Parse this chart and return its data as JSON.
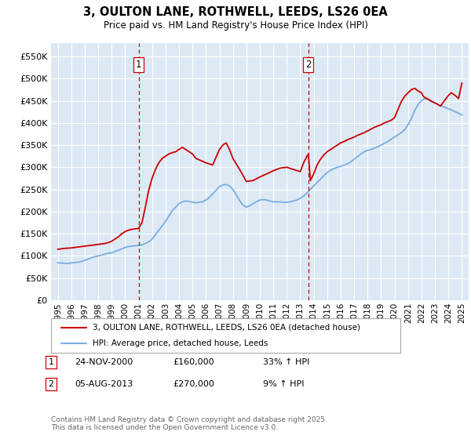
{
  "title": "3, OULTON LANE, ROTHWELL, LEEDS, LS26 0EA",
  "subtitle": "Price paid vs. HM Land Registry's House Price Index (HPI)",
  "ylim": [
    0,
    580000
  ],
  "xlim_year_start": 1994.5,
  "xlim_year_end": 2025.5,
  "yticks": [
    0,
    50000,
    100000,
    150000,
    200000,
    250000,
    300000,
    350000,
    400000,
    450000,
    500000,
    550000
  ],
  "ytick_labels": [
    "£0",
    "£50K",
    "£100K",
    "£150K",
    "£200K",
    "£250K",
    "£300K",
    "£350K",
    "£400K",
    "£450K",
    "£500K",
    "£550K"
  ],
  "xticks": [
    1995,
    1996,
    1997,
    1998,
    1999,
    2000,
    2001,
    2002,
    2003,
    2004,
    2005,
    2006,
    2007,
    2008,
    2009,
    2010,
    2011,
    2012,
    2013,
    2014,
    2015,
    2016,
    2017,
    2018,
    2019,
    2020,
    2021,
    2022,
    2023,
    2024,
    2025
  ],
  "background_color": "#ffffff",
  "plot_bg_color": "#dce9f5",
  "grid_color": "#ffffff",
  "red_line_color": "#cc0000",
  "blue_line_color": "#7aace0",
  "vline_color": "#cc0000",
  "purchase1_year": 2001.0,
  "purchase1_price": 160000,
  "purchase1_label": "1",
  "purchase1_date": "24-NOV-2000",
  "purchase1_hpi": "33% ↑ HPI",
  "purchase2_year": 2013.6,
  "purchase2_price": 270000,
  "purchase2_label": "2",
  "purchase2_date": "05-AUG-2013",
  "purchase2_hpi": "9% ↑ HPI",
  "legend_line1": "3, OULTON LANE, ROTHWELL, LEEDS, LS26 0EA (detached house)",
  "legend_line2": "HPI: Average price, detached house, Leeds",
  "footer": "Contains HM Land Registry data © Crown copyright and database right 2025.\nThis data is licensed under the Open Government Licence v3.0.",
  "hpi_years": [
    1995.0,
    1995.25,
    1995.5,
    1995.75,
    1996.0,
    1996.25,
    1996.5,
    1996.75,
    1997.0,
    1997.25,
    1997.5,
    1997.75,
    1998.0,
    1998.25,
    1998.5,
    1998.75,
    1999.0,
    1999.25,
    1999.5,
    1999.75,
    2000.0,
    2000.25,
    2000.5,
    2000.75,
    2001.0,
    2001.25,
    2001.5,
    2001.75,
    2002.0,
    2002.25,
    2002.5,
    2002.75,
    2003.0,
    2003.25,
    2003.5,
    2003.75,
    2004.0,
    2004.25,
    2004.5,
    2004.75,
    2005.0,
    2005.25,
    2005.5,
    2005.75,
    2006.0,
    2006.25,
    2006.5,
    2006.75,
    2007.0,
    2007.25,
    2007.5,
    2007.75,
    2008.0,
    2008.25,
    2008.5,
    2008.75,
    2009.0,
    2009.25,
    2009.5,
    2009.75,
    2010.0,
    2010.25,
    2010.5,
    2010.75,
    2011.0,
    2011.25,
    2011.5,
    2011.75,
    2012.0,
    2012.25,
    2012.5,
    2012.75,
    2013.0,
    2013.25,
    2013.5,
    2013.75,
    2014.0,
    2014.25,
    2014.5,
    2014.75,
    2015.0,
    2015.25,
    2015.5,
    2015.75,
    2016.0,
    2016.25,
    2016.5,
    2016.75,
    2017.0,
    2017.25,
    2017.5,
    2017.75,
    2018.0,
    2018.25,
    2018.5,
    2018.75,
    2019.0,
    2019.25,
    2019.5,
    2019.75,
    2020.0,
    2020.25,
    2020.5,
    2020.75,
    2021.0,
    2021.25,
    2021.5,
    2021.75,
    2022.0,
    2022.25,
    2022.5,
    2022.75,
    2023.0,
    2023.25,
    2023.5,
    2023.75,
    2024.0,
    2024.25,
    2024.5,
    2024.75,
    2025.0
  ],
  "hpi_values": [
    85000,
    84000,
    83500,
    83000,
    84000,
    85000,
    86000,
    87000,
    90000,
    93000,
    96000,
    98000,
    100000,
    102000,
    104000,
    106000,
    107000,
    110000,
    113000,
    116000,
    119000,
    121000,
    122000,
    123000,
    123500,
    125000,
    128000,
    132000,
    138000,
    148000,
    158000,
    168000,
    178000,
    190000,
    202000,
    210000,
    218000,
    222000,
    224000,
    223000,
    221000,
    220000,
    221000,
    222000,
    226000,
    232000,
    240000,
    248000,
    256000,
    260000,
    261000,
    258000,
    250000,
    238000,
    225000,
    215000,
    210000,
    213000,
    218000,
    222000,
    226000,
    227000,
    226000,
    224000,
    222000,
    222000,
    222000,
    221000,
    221000,
    222000,
    224000,
    226000,
    230000,
    235000,
    242000,
    250000,
    258000,
    266000,
    273000,
    281000,
    288000,
    293000,
    297000,
    300000,
    302000,
    305000,
    308000,
    312000,
    318000,
    324000,
    330000,
    335000,
    338000,
    340000,
    343000,
    346000,
    350000,
    354000,
    358000,
    363000,
    368000,
    373000,
    378000,
    385000,
    396000,
    410000,
    428000,
    442000,
    450000,
    455000,
    452000,
    448000,
    445000,
    441000,
    438000,
    435000,
    432000,
    429000,
    425000,
    422000,
    418000
  ],
  "price_years": [
    1995.0,
    1995.25,
    1995.5,
    1995.75,
    1996.0,
    1996.25,
    1996.5,
    1996.75,
    1997.0,
    1997.25,
    1997.5,
    1997.75,
    1998.0,
    1998.25,
    1998.5,
    1998.75,
    1999.0,
    1999.25,
    1999.5,
    1999.75,
    2000.0,
    2000.25,
    2000.5,
    2000.75,
    2001.0,
    2001.25,
    2001.5,
    2001.75,
    2002.0,
    2002.25,
    2002.5,
    2002.75,
    2003.0,
    2003.25,
    2003.5,
    2003.75,
    2004.0,
    2004.25,
    2004.5,
    2005.0,
    2005.25,
    2006.0,
    2006.5,
    2007.0,
    2007.25,
    2007.5,
    2007.75,
    2008.0,
    2008.5,
    2009.0,
    2009.5,
    2010.0,
    2010.5,
    2011.0,
    2011.5,
    2012.0,
    2012.5,
    2013.0,
    2013.25,
    2013.5,
    2013.6,
    2013.75,
    2014.0,
    2014.25,
    2014.5,
    2014.75,
    2015.0,
    2015.25,
    2015.5,
    2015.75,
    2016.0,
    2016.25,
    2016.5,
    2016.75,
    2017.0,
    2017.25,
    2017.5,
    2017.75,
    2018.0,
    2018.25,
    2018.5,
    2018.75,
    2019.0,
    2019.25,
    2019.5,
    2019.75,
    2020.0,
    2020.25,
    2020.5,
    2020.75,
    2021.0,
    2021.25,
    2021.5,
    2021.75,
    2022.0,
    2022.1,
    2022.2,
    2022.4,
    2022.6,
    2022.8,
    2023.0,
    2023.2,
    2023.4,
    2023.7,
    2024.0,
    2024.2,
    2024.5,
    2024.75,
    2025.0
  ],
  "price_values": [
    115000,
    116000,
    117000,
    117500,
    118000,
    119000,
    120000,
    121000,
    122000,
    123000,
    124000,
    125000,
    126000,
    127000,
    128000,
    130000,
    133000,
    138000,
    143000,
    150000,
    155000,
    158000,
    160000,
    161000,
    162000,
    175000,
    210000,
    248000,
    275000,
    295000,
    310000,
    320000,
    325000,
    330000,
    333000,
    335000,
    340000,
    345000,
    340000,
    330000,
    320000,
    310000,
    305000,
    340000,
    350000,
    355000,
    340000,
    320000,
    295000,
    268000,
    270000,
    278000,
    285000,
    292000,
    298000,
    300000,
    295000,
    290000,
    310000,
    325000,
    330000,
    270000,
    285000,
    305000,
    318000,
    328000,
    335000,
    340000,
    345000,
    350000,
    355000,
    358000,
    362000,
    365000,
    368000,
    372000,
    375000,
    378000,
    382000,
    386000,
    390000,
    393000,
    396000,
    400000,
    403000,
    406000,
    412000,
    430000,
    448000,
    460000,
    468000,
    475000,
    478000,
    472000,
    468000,
    462000,
    458000,
    455000,
    452000,
    448000,
    445000,
    442000,
    438000,
    450000,
    462000,
    468000,
    462000,
    455000,
    490000
  ]
}
